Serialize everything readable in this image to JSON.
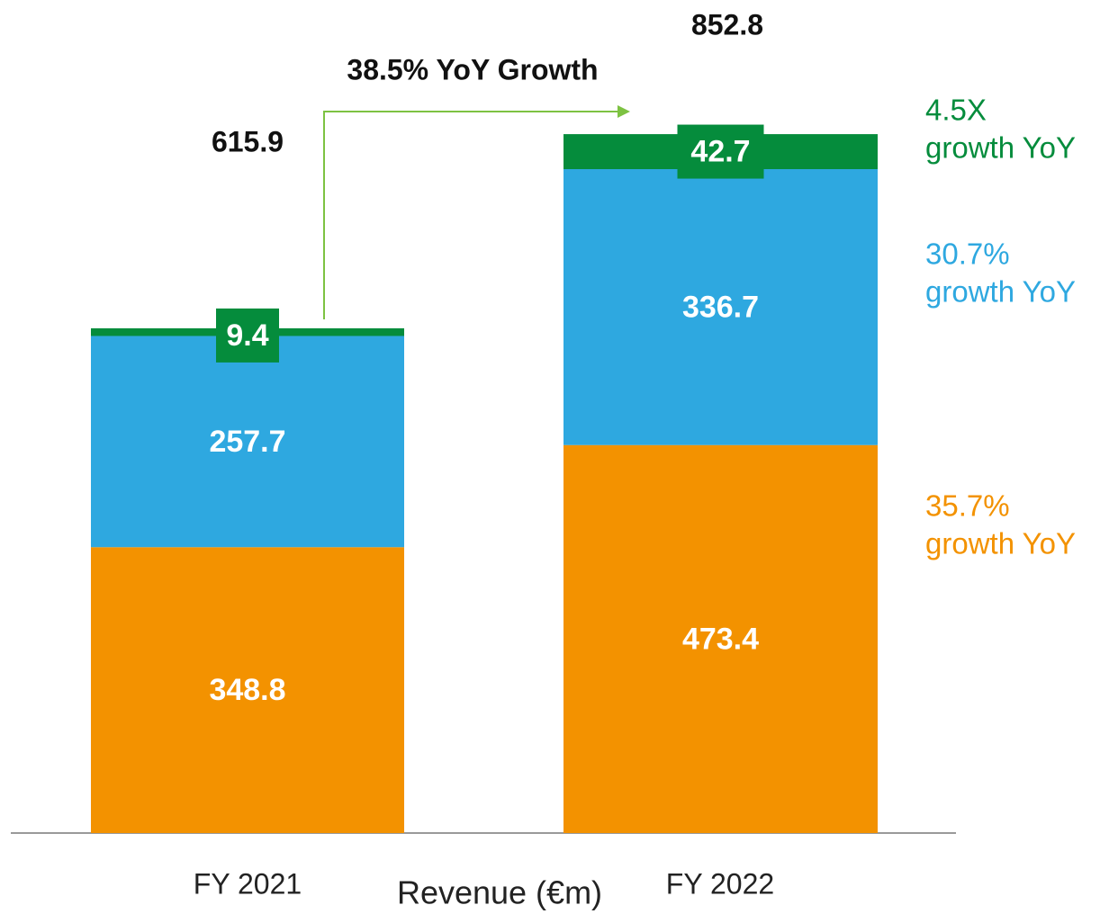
{
  "chart_data": {
    "type": "stacked_bar",
    "title": "38.5% YoY Growth",
    "x_label": "Revenue (€m)",
    "categories": [
      "FY 2021",
      "FY 2022"
    ],
    "totals": [
      615.9,
      852.8
    ],
    "series": [
      {
        "color": "#f39200",
        "values": [
          348.8,
          473.4
        ],
        "note": [
          "35.7%",
          "growth YoY"
        ]
      },
      {
        "color": "#2ea8e0",
        "values": [
          257.7,
          336.7
        ],
        "note": [
          "30.7%",
          "growth YoY"
        ]
      },
      {
        "color": "#058c3c",
        "values": [
          9.4,
          42.7
        ],
        "note": [
          "4.5X",
          "growth YoY"
        ]
      }
    ],
    "ylim": [
      0,
      1000
    ],
    "arrow_color": "#7dc242"
  }
}
